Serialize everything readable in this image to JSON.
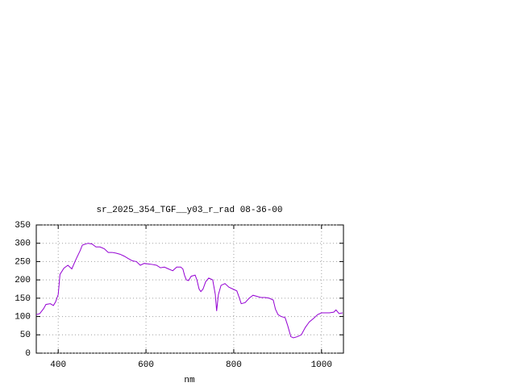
{
  "chart_data": {
    "type": "line",
    "title": "sr_2025_354_TGF__y03_r_rad 08-36-00",
    "x_label": "nm",
    "xlim": [
      350,
      1050
    ],
    "xticks": [
      400,
      600,
      800,
      1000
    ],
    "ylim": [
      0,
      350
    ],
    "yticks": [
      0,
      50,
      100,
      150,
      200,
      250,
      300,
      350
    ],
    "grid": true,
    "series": [
      {
        "color": "#9400d3",
        "x": [
          350,
          358,
          367,
          372,
          382,
          389,
          394,
          400,
          404,
          413,
          422,
          431,
          440,
          450,
          455,
          468,
          477,
          486,
          495,
          505,
          514,
          523,
          532,
          541,
          550,
          560,
          569,
          578,
          587,
          596,
          615,
          624,
          633,
          642,
          651,
          661,
          670,
          679,
          684,
          688,
          692,
          697,
          703,
          712,
          716,
          721,
          725,
          730,
          736,
          743,
          752,
          758,
          761,
          765,
          771,
          780,
          789,
          798,
          807,
          813,
          817,
          826,
          835,
          844,
          853,
          862,
          872,
          881,
          890,
          895,
          901,
          908,
          917,
          923,
          930,
          936,
          945,
          954,
          963,
          972,
          982,
          991,
          1000,
          1018,
          1028,
          1033,
          1040,
          1048
        ],
        "values": [
          105,
          108,
          122,
          133,
          135,
          130,
          140,
          160,
          215,
          232,
          240,
          230,
          255,
          280,
          295,
          300,
          298,
          290,
          290,
          285,
          275,
          275,
          273,
          270,
          265,
          258,
          252,
          250,
          240,
          245,
          242,
          240,
          233,
          235,
          230,
          225,
          235,
          235,
          230,
          212,
          200,
          198,
          210,
          213,
          200,
          175,
          168,
          175,
          195,
          205,
          200,
          160,
          115,
          160,
          185,
          190,
          180,
          175,
          170,
          150,
          135,
          138,
          150,
          158,
          155,
          152,
          152,
          150,
          145,
          120,
          105,
          100,
          97,
          75,
          45,
          42,
          45,
          50,
          70,
          85,
          95,
          105,
          110,
          110,
          112,
          118,
          108,
          110
        ]
      }
    ]
  }
}
